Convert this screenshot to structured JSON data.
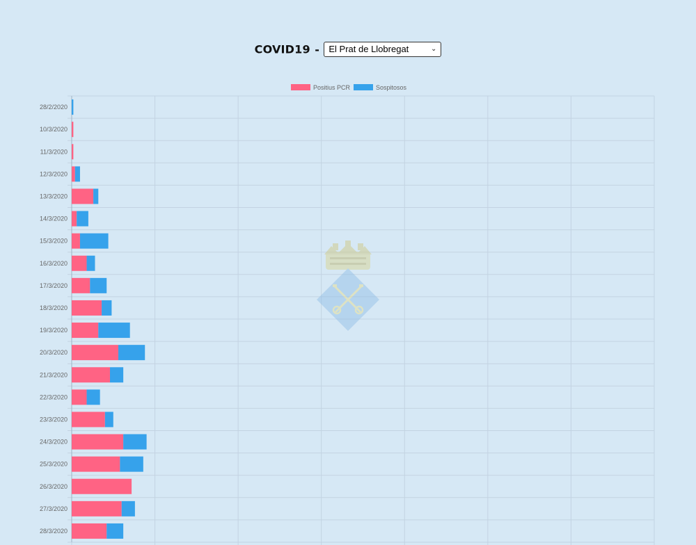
{
  "header": {
    "title": "COVID19",
    "separator": "-",
    "municipality_select": {
      "selected": "El Prat de Llobregat"
    }
  },
  "colors": {
    "background": "#d6e8f5",
    "positius": "#ff6384",
    "sospitosos": "#36a2eb",
    "grid": "#c3d3e2"
  },
  "watermark": {
    "icon": "el-prat-coat-of-arms-icon"
  },
  "chart_data": {
    "type": "bar",
    "orientation": "horizontal",
    "stacked": true,
    "grid": true,
    "legend_position": "top",
    "xlim": [
      0,
      35
    ],
    "categories": [
      "28/2/2020",
      "10/3/2020",
      "11/3/2020",
      "12/3/2020",
      "13/3/2020",
      "14/3/2020",
      "15/3/2020",
      "16/3/2020",
      "17/3/2020",
      "18/3/2020",
      "19/3/2020",
      "20/3/2020",
      "21/3/2020",
      "22/3/2020",
      "23/3/2020",
      "24/3/2020",
      "25/3/2020",
      "26/3/2020",
      "27/3/2020",
      "28/3/2020"
    ],
    "series": [
      {
        "name": "Positius PCR",
        "color": "#ff6384",
        "values": [
          0,
          0.1,
          0.1,
          0.2,
          1.3,
          0.3,
          0.5,
          0.9,
          1.1,
          1.8,
          1.6,
          2.8,
          2.3,
          0.9,
          2.0,
          3.1,
          2.9,
          3.6,
          3.0,
          2.1
        ]
      },
      {
        "name": "Sospitosos",
        "color": "#36a2eb",
        "values": [
          0.1,
          0,
          0,
          0.3,
          0.3,
          0.7,
          1.7,
          0.5,
          1.0,
          0.6,
          1.9,
          1.6,
          0.8,
          0.8,
          0.5,
          1.4,
          1.4,
          0,
          0.8,
          1.0
        ]
      }
    ]
  }
}
